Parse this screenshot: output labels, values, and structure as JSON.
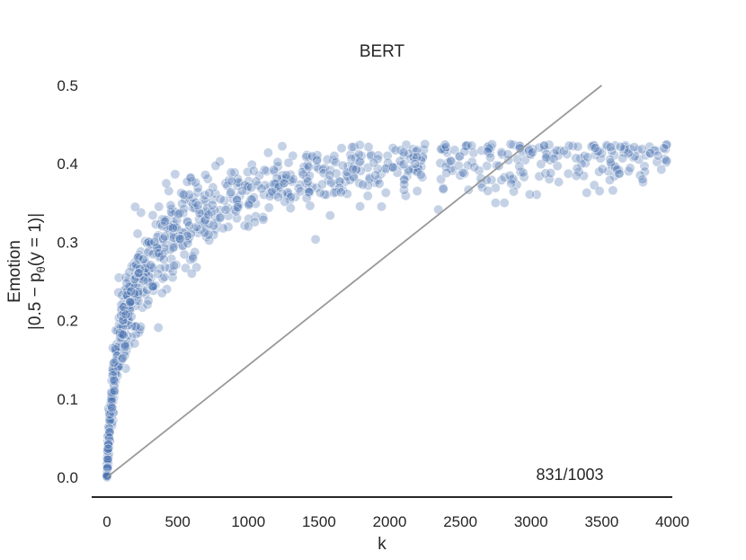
{
  "chart_data": {
    "type": "scatter",
    "title": "BERT",
    "xlabel": "k",
    "ylabel_line1": "Emotion",
    "ylabel_line2": "|0.5 − p",
    "ylabel_sub": "θ",
    "ylabel_line2_end": "(y = 1)|",
    "annotation": "831/1003",
    "xlim": [
      -100,
      4000
    ],
    "ylim": [
      -0.02,
      0.5
    ],
    "xticks": [
      0,
      500,
      1000,
      1500,
      2000,
      2500,
      3000,
      3500,
      4000
    ],
    "yticks": [
      0.0,
      0.1,
      0.2,
      0.3,
      0.4,
      0.5
    ],
    "xtick_labels": [
      "0",
      "500",
      "1000",
      "1500",
      "2000",
      "2500",
      "3000",
      "3500",
      "4000"
    ],
    "ytick_labels": [
      "0.0",
      "0.1",
      "0.2",
      "0.3",
      "0.4",
      "0.5"
    ],
    "reference_line": {
      "x": [
        0,
        3500
      ],
      "y": [
        0.0,
        0.5
      ],
      "color": "#999999"
    },
    "point_color": "#4c72b0",
    "point_count_estimate": 1003,
    "trend": {
      "description": "saturating curve rising steeply near k=0 and plateauing around 0.4",
      "samples": [
        {
          "x": 0,
          "y": 0.0
        },
        {
          "x": 10,
          "y": 0.04
        },
        {
          "x": 30,
          "y": 0.09
        },
        {
          "x": 60,
          "y": 0.14
        },
        {
          "x": 100,
          "y": 0.18
        },
        {
          "x": 200,
          "y": 0.23
        },
        {
          "x": 300,
          "y": 0.27
        },
        {
          "x": 500,
          "y": 0.32
        },
        {
          "x": 750,
          "y": 0.35
        },
        {
          "x": 1000,
          "y": 0.365
        },
        {
          "x": 1500,
          "y": 0.385
        },
        {
          "x": 2000,
          "y": 0.395
        },
        {
          "x": 2500,
          "y": 0.4
        },
        {
          "x": 3000,
          "y": 0.405
        },
        {
          "x": 3500,
          "y": 0.405
        },
        {
          "x": 3950,
          "y": 0.41
        }
      ]
    },
    "outliers": [
      {
        "x": 1660,
        "y": 0.42
      },
      {
        "x": 2250,
        "y": 0.425
      },
      {
        "x": 2580,
        "y": 0.423
      },
      {
        "x": 2920,
        "y": 0.42
      },
      {
        "x": 3270,
        "y": 0.423
      },
      {
        "x": 3940,
        "y": 0.42
      },
      {
        "x": 3790,
        "y": 0.38
      },
      {
        "x": 2860,
        "y": 0.375
      },
      {
        "x": 420,
        "y": 0.375
      },
      {
        "x": 200,
        "y": 0.345
      },
      {
        "x": 600,
        "y": 0.26
      },
      {
        "x": 1000,
        "y": 0.32
      },
      {
        "x": 390,
        "y": 0.235
      }
    ]
  }
}
